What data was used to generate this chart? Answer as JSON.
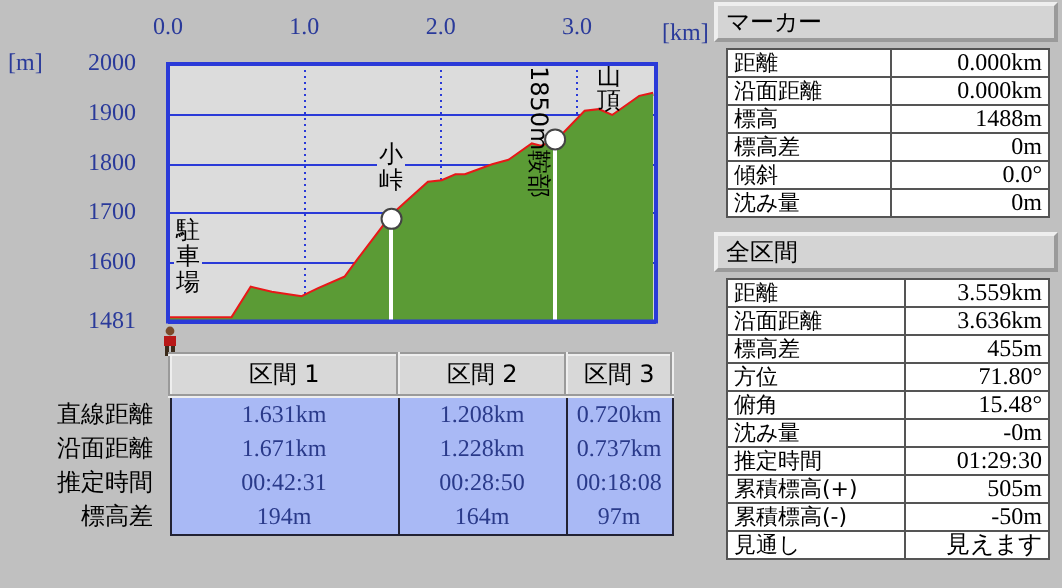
{
  "chart_data": [
    {
      "type": "area",
      "xlabel": "[km]",
      "ylabel": "[m]",
      "xlim": [
        0,
        3.58
      ],
      "xticks": [
        {
          "value": 0,
          "label": "0.0"
        },
        {
          "value": 1,
          "label": "1.0"
        },
        {
          "value": 2,
          "label": "2.0"
        },
        {
          "value": 3,
          "label": "3.0"
        }
      ],
      "ylim": [
        1481,
        2000
      ],
      "yticks": [
        1481,
        1600,
        1700,
        1800,
        1900,
        2000
      ],
      "grid": true,
      "legend": false,
      "x": [
        0,
        0.47,
        0.61,
        0.76,
        0.98,
        1.1,
        1.3,
        1.4,
        1.64,
        1.74,
        1.91,
        2.01,
        2.11,
        2.18,
        2.38,
        2.5,
        2.67,
        2.74,
        2.87,
        3.06,
        3.16,
        3.26,
        3.46,
        3.56
      ],
      "series": [
        {
          "color": "#5b9b35",
          "values": [
            1488,
            1488,
            1549,
            1539,
            1530,
            1546,
            1570,
            1607,
            1694,
            1719,
            1761,
            1764,
            1776,
            1776,
            1796,
            1805,
            1838,
            1833,
            1850,
            1904,
            1907,
            1895,
            1934,
            1940
          ]
        },
        {
          "type": "line",
          "color": "#e81818",
          "values": [
            1488,
            1488,
            1549,
            1539,
            1530,
            1546,
            1570,
            1607,
            1694,
            1719,
            1761,
            1764,
            1776,
            1776,
            1796,
            1805,
            1838,
            1833,
            1850,
            1904,
            1907,
            1895,
            1934,
            1940
          ]
        },
        {
          "type": "scatter",
          "color": "#ffffff",
          "marker": "circle",
          "x": [
            1.64,
            2.84
          ],
          "values": [
            1688,
            1848
          ]
        }
      ],
      "ref_lines": [
        {
          "axis": "x",
          "value": 1.631,
          "label": "小峠",
          "color": "#ffffff"
        },
        {
          "axis": "x",
          "value": 2.839,
          "label": "1850m鞍部",
          "color": "#ffffff"
        }
      ],
      "annotations": [
        {
          "text": "駐車場",
          "x": 0,
          "y": 1488
        },
        {
          "text": "山頂",
          "x": 3.56,
          "y": 1940
        }
      ]
    },
    {
      "type": "other",
      "categories": [
        "区間 1",
        "区間 2",
        "区間 3"
      ],
      "y_categories": [
        "直線距離",
        "沿面距離",
        "推定時間",
        "標高差"
      ],
      "cell_labels": [
        [
          "1.631km",
          "1.208km",
          "0.720km"
        ],
        [
          "1.671km",
          "1.228km",
          "0.737km"
        ],
        [
          "00:42:31",
          "00:28:50",
          "00:18:08"
        ],
        [
          "194m",
          "164m",
          "97m"
        ]
      ]
    },
    {
      "type": "other",
      "title": "マーカー",
      "y_categories": [
        "距離",
        "沿面距離",
        "標高",
        "標高差",
        "傾斜",
        "沈み量"
      ],
      "cell_labels": [
        [
          "0.000km"
        ],
        [
          "0.000km"
        ],
        [
          "1488m"
        ],
        [
          "0m"
        ],
        [
          "0.0°"
        ],
        [
          "0m"
        ]
      ]
    },
    {
      "type": "other",
      "title": "全区間",
      "y_categories": [
        "距離",
        "沿面距離",
        "標高差",
        "方位",
        "俯角",
        "沈み量",
        "推定時間",
        "累積標高(+)",
        "累積標高(-)",
        "見通し"
      ],
      "cell_labels": [
        [
          "3.559km"
        ],
        [
          "3.636km"
        ],
        [
          "455m"
        ],
        [
          "71.80°"
        ],
        [
          "15.48°"
        ],
        [
          "-0m"
        ],
        [
          "01:29:30"
        ],
        [
          "505m"
        ],
        [
          "-50m"
        ],
        [
          "見えます"
        ]
      ]
    }
  ]
}
